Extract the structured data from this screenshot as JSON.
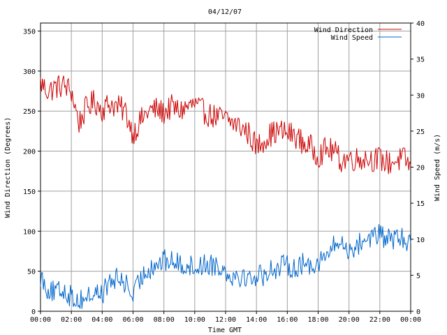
{
  "chart_data": {
    "type": "line",
    "title": "04/12/07",
    "xlabel": "Time GMT",
    "ylabel_left": "Wind Direction (Degrees)",
    "ylabel_right": "Wind Speed (m/s)",
    "x_ticks": [
      "00:00",
      "02:00",
      "04:00",
      "06:00",
      "08:00",
      "10:00",
      "12:00",
      "14:00",
      "16:00",
      "18:00",
      "20:00",
      "22:00",
      "00:00"
    ],
    "x_range_hours": [
      0,
      24
    ],
    "y_left_range": [
      0,
      360
    ],
    "y_left_ticks": [
      0,
      50,
      100,
      150,
      200,
      250,
      300,
      350
    ],
    "y_right_range": [
      0,
      40
    ],
    "y_right_ticks": [
      0,
      5,
      10,
      15,
      20,
      25,
      30,
      35,
      40
    ],
    "grid": true,
    "legend_position": "top-right",
    "series": [
      {
        "name": "Wind Direction",
        "axis": "left",
        "color": "#cc0000",
        "x": [
          0,
          0.5,
          1,
          1.5,
          2,
          2.5,
          3,
          3.5,
          4,
          4.5,
          5,
          5.5,
          6,
          6.5,
          7,
          7.5,
          8,
          8.5,
          9,
          9.5,
          10,
          10.5,
          11,
          11.5,
          12,
          12.5,
          13,
          13.5,
          14,
          14.5,
          15,
          15.5,
          16,
          16.5,
          17,
          17.5,
          18,
          18.5,
          19,
          19.5,
          20,
          20.5,
          21,
          21.5,
          22,
          22.5,
          23,
          23.5,
          24
        ],
        "values": [
          285,
          275,
          280,
          282,
          275,
          235,
          255,
          262,
          252,
          260,
          255,
          250,
          222,
          238,
          250,
          252,
          248,
          255,
          250,
          255,
          258,
          250,
          245,
          242,
          240,
          235,
          230,
          222,
          205,
          215,
          222,
          225,
          222,
          220,
          210,
          205,
          195,
          202,
          200,
          188,
          192,
          190,
          192,
          190,
          190,
          185,
          188,
          190,
          183
        ],
        "y_range": [
          0,
          360
        ]
      },
      {
        "name": "Wind Speed",
        "axis": "right",
        "color": "#0066cc",
        "x": [
          0,
          0.5,
          1,
          1.5,
          2,
          2.5,
          3,
          3.5,
          4,
          4.5,
          5,
          5.5,
          6,
          6.5,
          7,
          7.5,
          8,
          8.5,
          9,
          9.5,
          10,
          10.5,
          11,
          11.5,
          12,
          12.5,
          13,
          13.5,
          14,
          14.5,
          15,
          15.5,
          16,
          16.5,
          17,
          17.5,
          18,
          18.5,
          19,
          19.5,
          20,
          20.5,
          21,
          21.5,
          22,
          22.5,
          23,
          23.5,
          24
        ],
        "values": [
          5,
          3,
          2.5,
          3,
          2,
          1.5,
          2,
          2.5,
          2.5,
          4,
          4.5,
          4,
          2,
          4.5,
          6,
          6.5,
          7,
          7,
          6.5,
          6.5,
          6,
          6.5,
          6.5,
          6.5,
          5.5,
          5,
          5,
          4.5,
          5,
          5,
          6,
          6,
          6.5,
          6,
          6.5,
          6.5,
          7,
          7.5,
          9,
          9.5,
          8.5,
          9,
          10,
          10.5,
          10.5,
          10,
          10,
          10,
          9.5
        ],
        "y_range": [
          0,
          40
        ]
      }
    ]
  }
}
